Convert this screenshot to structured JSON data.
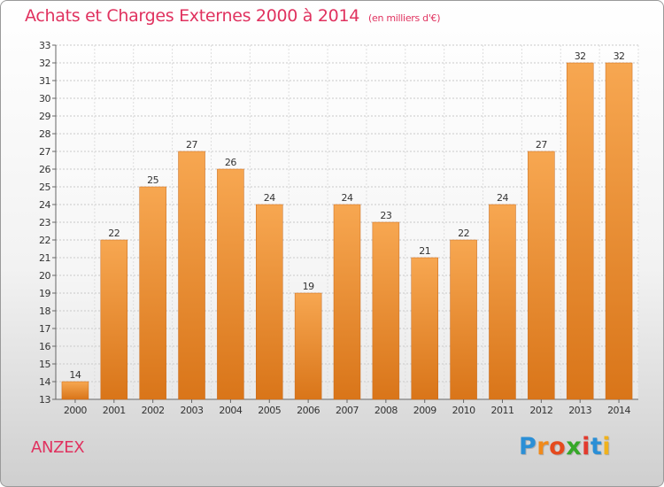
{
  "header": {
    "title": "Achats et Charges Externes 2000 à 2014",
    "unit": "(en milliers d'€)"
  },
  "commune": "ANZEX",
  "brand": {
    "name": "Proxiti",
    "letters": [
      "P",
      "r",
      "o",
      "x",
      "i",
      "t",
      "i"
    ],
    "colors": [
      "#2b8fd6",
      "#f08a1c",
      "#e54a1e",
      "#36a829",
      "#e23a2e",
      "#2b8fd6",
      "#f0b21c"
    ]
  },
  "colors": {
    "accent": "#e0325f",
    "bar_top": "#f7a751",
    "bar_bottom": "#d97519",
    "text": "#333333"
  },
  "chart_data": {
    "type": "bar",
    "categories": [
      "2000",
      "2001",
      "2002",
      "2003",
      "2004",
      "2005",
      "2006",
      "2007",
      "2008",
      "2009",
      "2010",
      "2011",
      "2012",
      "2013",
      "2014"
    ],
    "values": [
      14,
      22,
      25,
      27,
      26,
      24,
      19,
      24,
      23,
      21,
      22,
      24,
      27,
      32,
      32
    ],
    "title": "Achats et Charges Externes 2000 à 2014",
    "ylim": [
      13,
      33
    ],
    "yticks": [
      13,
      14,
      15,
      16,
      17,
      18,
      19,
      20,
      21,
      22,
      23,
      24,
      25,
      26,
      27,
      28,
      29,
      30,
      31,
      32,
      33
    ],
    "grid": true,
    "data_labels": true
  }
}
